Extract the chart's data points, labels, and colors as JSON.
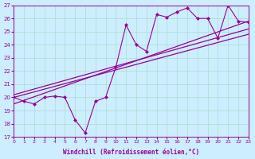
{
  "xlabel": "Windchill (Refroidissement éolien,°C)",
  "ylabel": "",
  "bg_color": "#cceeff",
  "grid_color": "#aaddcc",
  "line_color": "#990099",
  "xlim": [
    0,
    23
  ],
  "ylim": [
    17,
    27
  ],
  "xticks": [
    0,
    1,
    2,
    3,
    4,
    5,
    6,
    7,
    8,
    9,
    10,
    11,
    12,
    13,
    14,
    15,
    16,
    17,
    18,
    19,
    20,
    21,
    22,
    23
  ],
  "yticks": [
    17,
    18,
    19,
    20,
    21,
    22,
    23,
    24,
    25,
    26,
    27
  ],
  "data_x": [
    0,
    1,
    2,
    3,
    4,
    5,
    6,
    7,
    8,
    9,
    10,
    11,
    12,
    13,
    14,
    15,
    16,
    17,
    18,
    19,
    20,
    21,
    22,
    23
  ],
  "data_y": [
    20.0,
    19.7,
    19.5,
    20.0,
    20.1,
    20.0,
    18.3,
    17.3,
    19.7,
    20.0,
    22.3,
    25.5,
    24.0,
    23.5,
    26.3,
    26.1,
    26.5,
    26.8,
    26.0,
    26.0,
    24.5,
    27.0,
    25.8,
    25.7
  ],
  "reg_line": [
    [
      0,
      23
    ],
    [
      19.5,
      25.8
    ]
  ],
  "reg_line2": [
    [
      0,
      23
    ],
    [
      20.2,
      25.2
    ]
  ],
  "reg_line3": [
    [
      0,
      23
    ],
    [
      20.0,
      24.8
    ]
  ]
}
